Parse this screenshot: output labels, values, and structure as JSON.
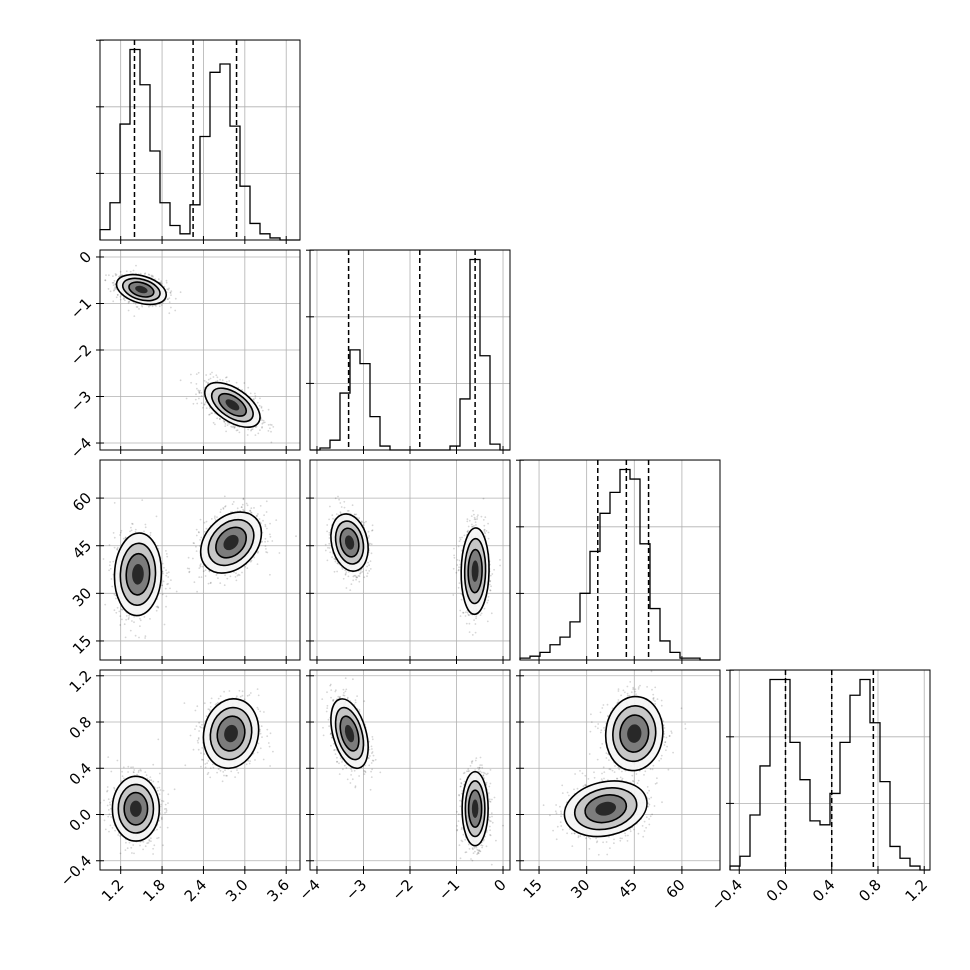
{
  "figure": {
    "background": "#ffffff",
    "grid": true
  },
  "colors": {
    "ink": "#000000",
    "grid": "#b0b0b0",
    "scatter": "#000000",
    "fill_light": "#f5f5f5",
    "fill_mid": "#bdbdbd",
    "fill_dark": "#6e6e6e",
    "fill_core": "#1a1a1a"
  },
  "chart_data": {
    "type": "corner",
    "parameters": [
      {
        "id": "p0",
        "label": "",
        "range": [
          0.9,
          3.8
        ],
        "ticks": [
          1.2,
          1.8,
          2.4,
          3.0,
          3.6
        ],
        "tick_labels": [
          "1.2",
          "1.8",
          "2.4",
          "3.0",
          "3.6"
        ]
      },
      {
        "id": "p1",
        "label": "",
        "range": [
          -4.15,
          0.15
        ],
        "ticks": [
          -4,
          -3,
          -2,
          -1,
          0
        ],
        "tick_labels": [
          "−4",
          "−3",
          "−2",
          "−1",
          "0"
        ]
      },
      {
        "id": "p2",
        "label": "",
        "range": [
          9,
          72
        ],
        "ticks": [
          15,
          30,
          45,
          60
        ],
        "tick_labels": [
          "15",
          "30",
          "45",
          "60"
        ]
      },
      {
        "id": "p3",
        "label": "",
        "range": [
          -0.48,
          1.25
        ],
        "ticks": [
          -0.4,
          0.0,
          0.4,
          0.8,
          1.2
        ],
        "tick_labels": [
          "−0.4",
          "0.0",
          "0.4",
          "0.8",
          "1.2"
        ]
      }
    ],
    "histograms": [
      {
        "param": "p0",
        "quantiles": [
          1.4,
          2.25,
          2.88
        ],
        "edges": [
          0.9,
          1.045,
          1.19,
          1.335,
          1.48,
          1.625,
          1.77,
          1.915,
          2.06,
          2.205,
          2.35,
          2.495,
          2.64,
          2.785,
          2.93,
          3.075,
          3.22,
          3.365,
          3.51,
          3.655,
          3.8
        ],
        "counts": [
          0.05,
          0.18,
          0.56,
          0.92,
          0.75,
          0.43,
          0.18,
          0.07,
          0.03,
          0.17,
          0.5,
          0.81,
          0.85,
          0.55,
          0.26,
          0.08,
          0.03,
          0.01,
          0.0,
          0.0
        ]
      },
      {
        "param": "p1",
        "quantiles": [
          -3.32,
          -1.79,
          -0.6
        ],
        "edges": [
          -4.15,
          -3.935,
          -3.72,
          -3.505,
          -3.29,
          -3.075,
          -2.86,
          -2.645,
          -2.43,
          -2.215,
          -2.0,
          -1.785,
          -1.57,
          -1.355,
          -1.14,
          -0.925,
          -0.71,
          -0.495,
          -0.28,
          -0.065,
          0.15
        ],
        "counts": [
          0.0,
          0.01,
          0.05,
          0.29,
          0.51,
          0.44,
          0.17,
          0.02,
          0.0,
          0.0,
          0.0,
          0.0,
          0.0,
          0.0,
          0.02,
          0.26,
          0.97,
          0.48,
          0.03,
          0.0
        ]
      },
      {
        "param": "p2",
        "quantiles": [
          33.5,
          42.5,
          49.5
        ],
        "edges": [
          9.0,
          12.15,
          15.3,
          18.45,
          21.6,
          24.75,
          27.9,
          31.05,
          34.2,
          37.35,
          40.5,
          43.65,
          46.8,
          49.95,
          53.1,
          56.25,
          59.4,
          62.55,
          65.7,
          68.85,
          72.0
        ],
        "counts": [
          0.01,
          0.02,
          0.04,
          0.08,
          0.12,
          0.2,
          0.35,
          0.57,
          0.77,
          0.88,
          1.0,
          0.95,
          0.61,
          0.27,
          0.1,
          0.04,
          0.01,
          0.01,
          0.0,
          0.0
        ]
      },
      {
        "param": "p3",
        "quantiles": [
          0.0,
          0.4,
          0.76
        ],
        "edges": [
          -0.48,
          -0.3935,
          -0.307,
          -0.2205,
          -0.134,
          -0.0475,
          0.039,
          0.1255,
          0.212,
          0.2985,
          0.385,
          0.4715,
          0.558,
          0.6445,
          0.731,
          0.8175,
          0.904,
          0.9905,
          1.077,
          1.1635,
          1.25
        ],
        "counts": [
          0.02,
          0.07,
          0.28,
          0.53,
          0.97,
          0.97,
          0.65,
          0.46,
          0.25,
          0.23,
          0.39,
          0.65,
          0.89,
          0.97,
          0.75,
          0.45,
          0.12,
          0.06,
          0.02,
          0.0
        ]
      }
    ],
    "scatter_panels": [
      {
        "x": "p0",
        "y": "p1",
        "modes": [
          {
            "cx": 1.5,
            "cy": -0.7,
            "sx": 0.18,
            "sy": 0.16,
            "rho": -0.35
          },
          {
            "cx": 2.82,
            "cy": -3.18,
            "sx": 0.2,
            "sy": 0.24,
            "rho": -0.55
          }
        ]
      },
      {
        "x": "p0",
        "y": "p2",
        "modes": [
          {
            "cx": 1.45,
            "cy": 36,
            "sx": 0.17,
            "sy": 6.5,
            "rho": 0.05
          },
          {
            "cx": 2.8,
            "cy": 46,
            "sx": 0.22,
            "sy": 4.8,
            "rho": 0.3
          }
        ]
      },
      {
        "x": "p1",
        "y": "p2",
        "modes": [
          {
            "cx": -3.3,
            "cy": 46,
            "sx": 0.2,
            "sy": 4.5,
            "rho": -0.2
          },
          {
            "cx": -0.6,
            "cy": 37,
            "sx": 0.15,
            "sy": 6.8,
            "rho": 0.05
          }
        ]
      },
      {
        "x": "p0",
        "y": "p3",
        "modes": [
          {
            "cx": 1.42,
            "cy": 0.05,
            "sx": 0.17,
            "sy": 0.14,
            "rho": 0.0
          },
          {
            "cx": 2.8,
            "cy": 0.7,
            "sx": 0.2,
            "sy": 0.15,
            "rho": 0.1
          }
        ]
      },
      {
        "x": "p1",
        "y": "p3",
        "modes": [
          {
            "cx": -3.3,
            "cy": 0.7,
            "sx": 0.2,
            "sy": 0.15,
            "rho": -0.4
          },
          {
            "cx": -0.6,
            "cy": 0.05,
            "sx": 0.14,
            "sy": 0.16,
            "rho": 0.0
          }
        ]
      },
      {
        "x": "p2",
        "y": "p3",
        "modes": [
          {
            "cx": 36,
            "cy": 0.05,
            "sx": 6.5,
            "sy": 0.12,
            "rho": 0.2
          },
          {
            "cx": 45,
            "cy": 0.7,
            "sx": 4.5,
            "sy": 0.16,
            "rho": 0.05
          }
        ]
      }
    ]
  }
}
